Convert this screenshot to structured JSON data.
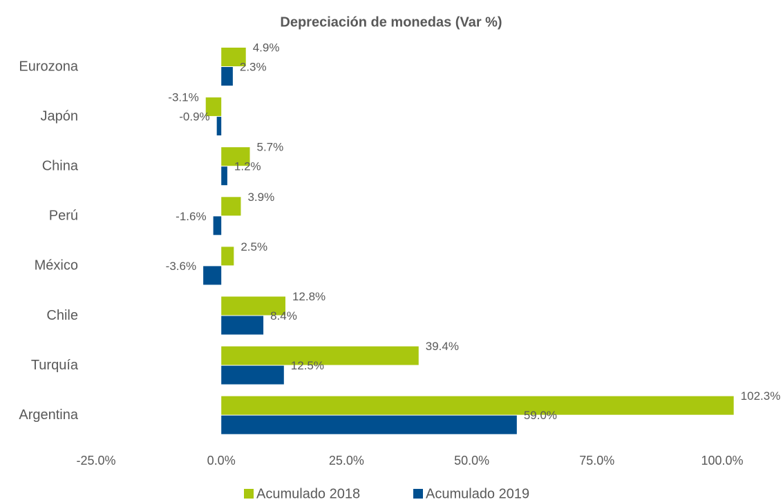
{
  "chart_data": {
    "type": "barh",
    "title": "Depreciación de monedas (Var %)",
    "categories": [
      "Eurozona",
      "Japón",
      "China",
      "Perú",
      "México",
      "Chile",
      "Turquía",
      "Argentina"
    ],
    "series": [
      {
        "name": "Acumulado 2018",
        "color": "#a9c70f",
        "values": [
          4.9,
          -3.1,
          5.7,
          3.9,
          2.5,
          12.8,
          39.4,
          102.3
        ],
        "value_labels": [
          "4.9%",
          "-3.1%",
          "5.7%",
          "3.9%",
          "2.5%",
          "12.8%",
          "39.4%",
          "102.3%"
        ]
      },
      {
        "name": "Acumulado 2019",
        "color": "#004f8f",
        "values": [
          2.3,
          -0.9,
          1.2,
          -1.6,
          -3.6,
          8.4,
          12.5,
          59.0
        ],
        "value_labels": [
          "2.3%",
          "-0.9%",
          "1.2%",
          "-1.6%",
          "-3.6%",
          "8.4%",
          "12.5%",
          "59.0%"
        ]
      }
    ],
    "xlim": [
      -25,
      100
    ],
    "xticks": [
      {
        "value": -25,
        "label": "-25.0%"
      },
      {
        "value": 0,
        "label": "0.0%"
      },
      {
        "value": 25,
        "label": "25.0%"
      },
      {
        "value": 50,
        "label": "50.0%"
      },
      {
        "value": 75,
        "label": "75.0%"
      },
      {
        "value": 100,
        "label": "100.0%"
      }
    ],
    "legend": "bottom",
    "grid": false
  }
}
